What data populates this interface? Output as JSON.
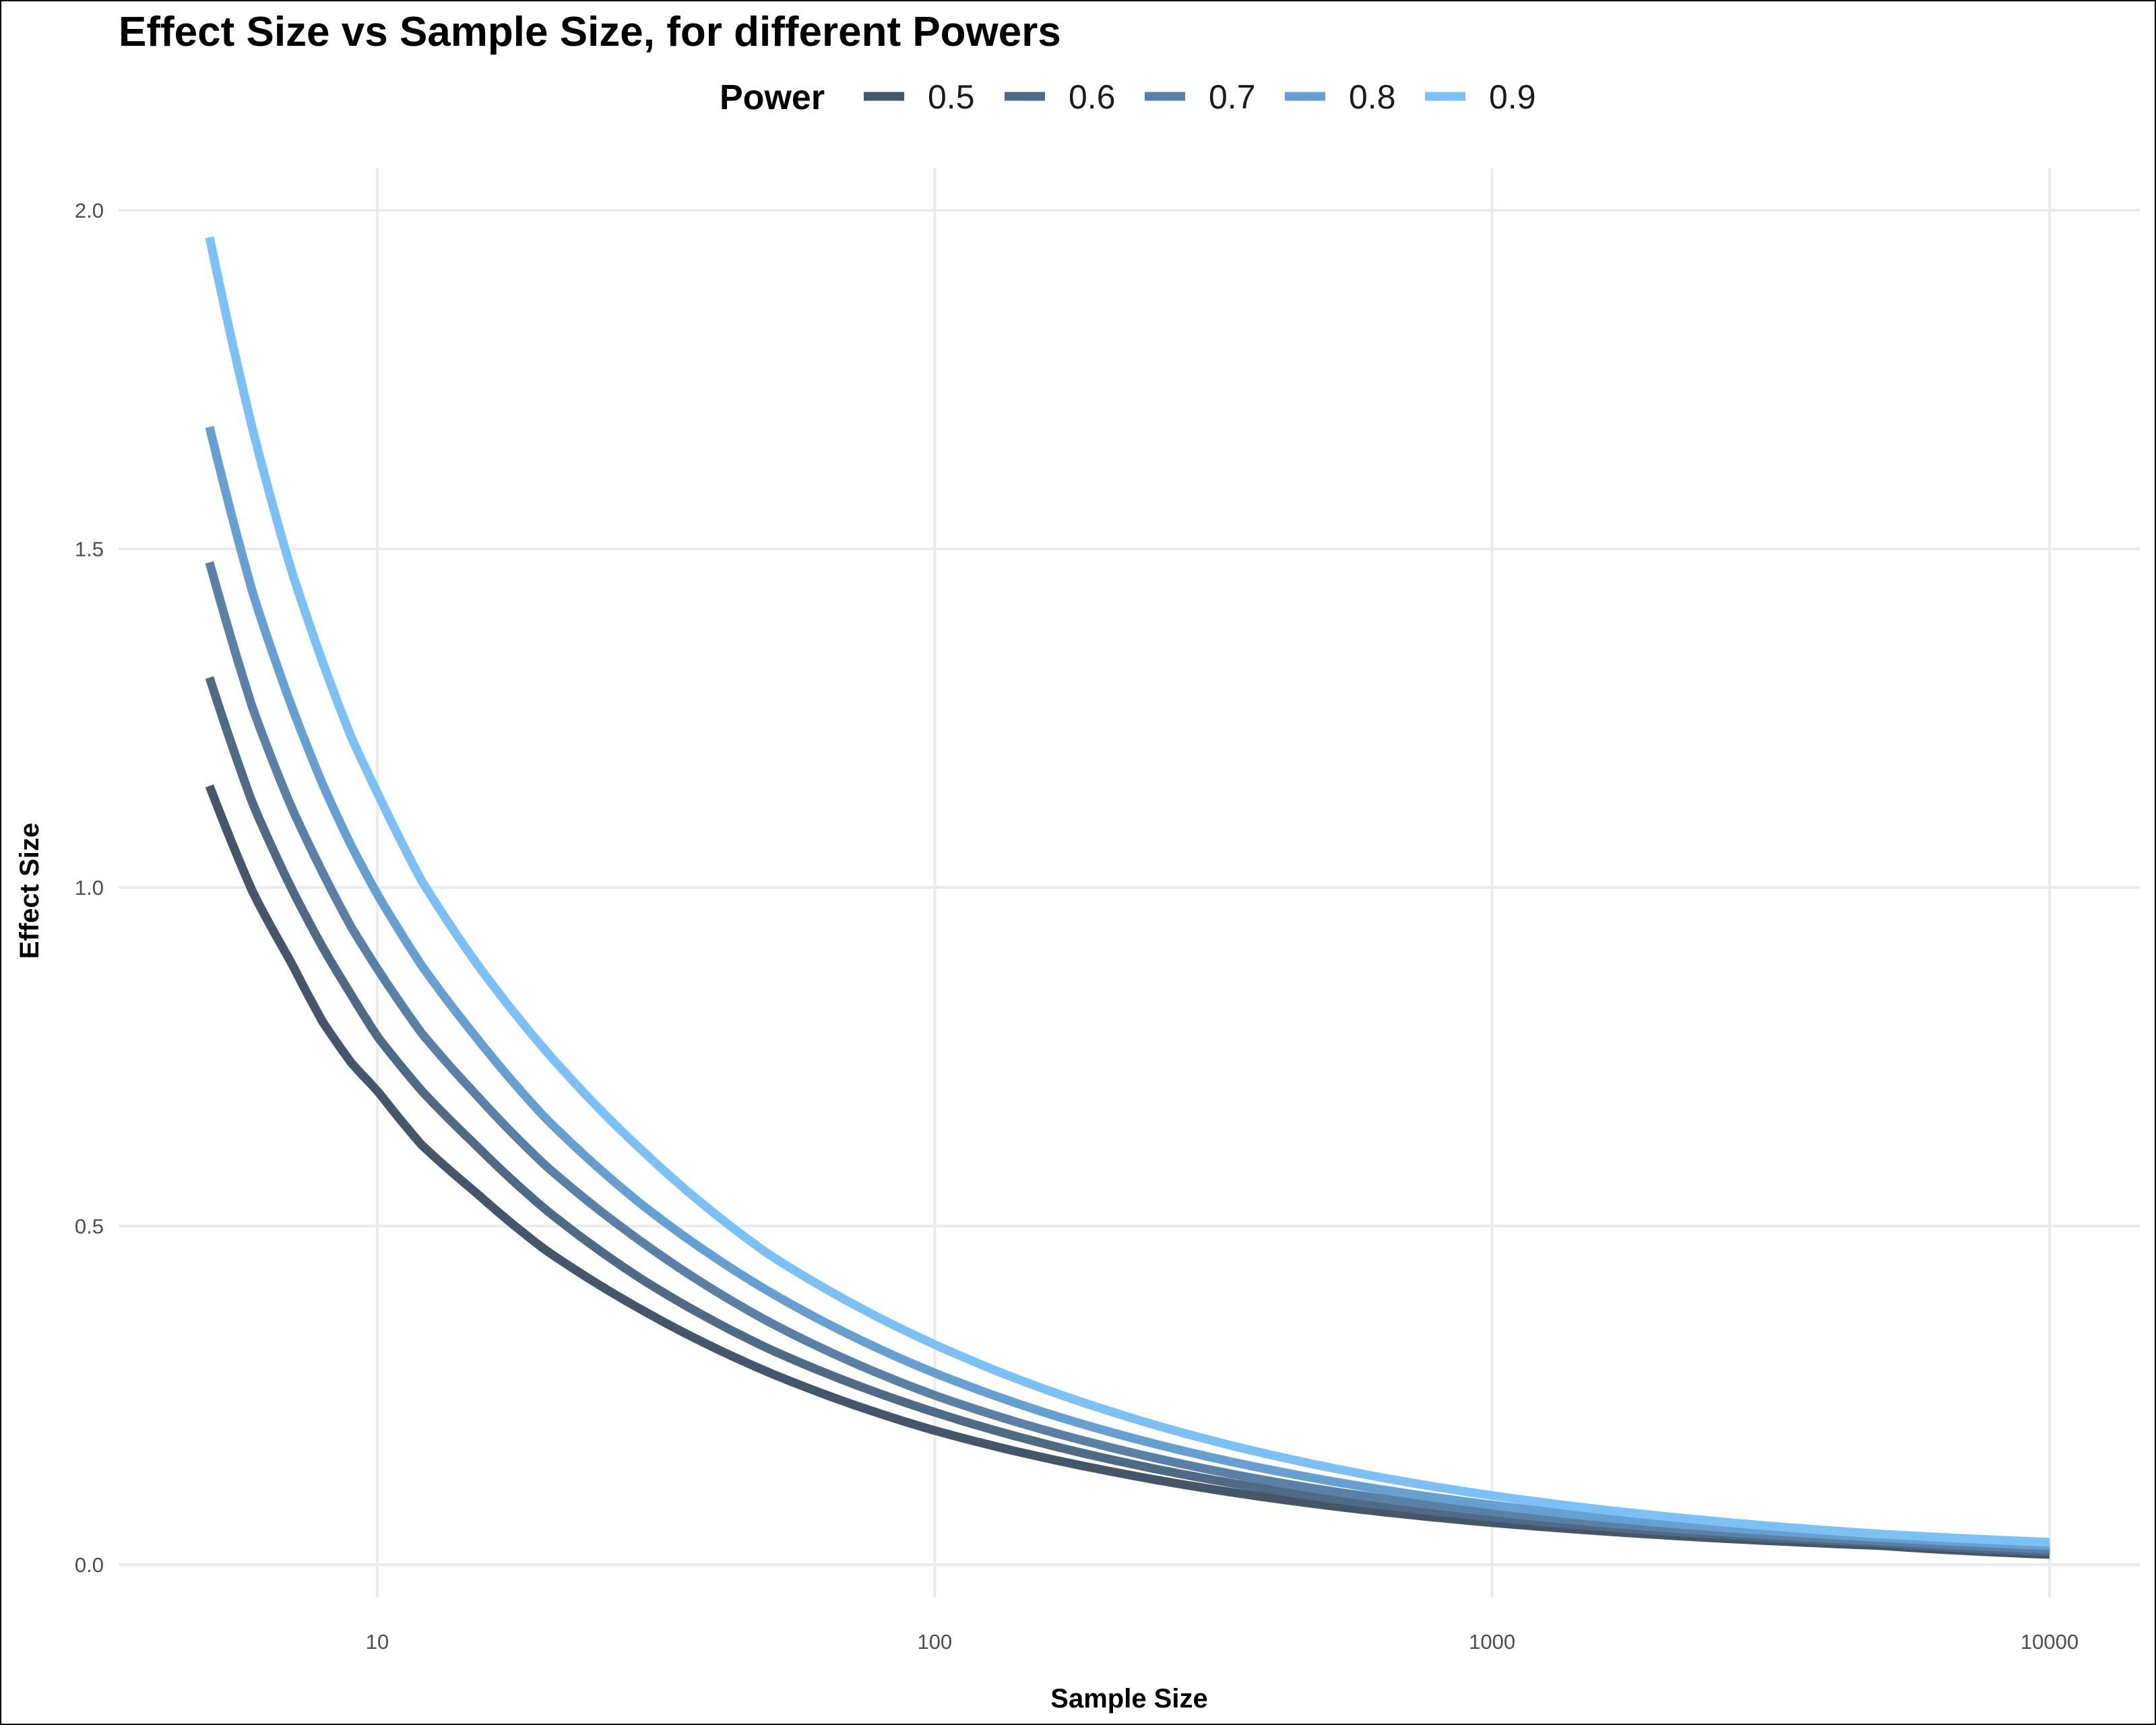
{
  "chart_data": {
    "type": "line",
    "title": "Effect Size vs Sample Size, for different Powers",
    "xlabel": "Sample Size",
    "ylabel": "Effect Size",
    "x_scale": "log10",
    "xlim": [
      5,
      10000
    ],
    "ylim": [
      0,
      2
    ],
    "x_ticks": [
      10,
      100,
      1000,
      10000
    ],
    "x_tick_labels": [
      "10",
      "100",
      "1000",
      "10000"
    ],
    "y_ticks": [
      0,
      0.5,
      1,
      1.5,
      2
    ],
    "y_tick_labels": [
      "0.0",
      "0.5",
      "1.0",
      "1.5",
      "2.0"
    ],
    "grid": true,
    "legend": {
      "title": "Power",
      "position": "top"
    },
    "x": [
      5,
      6,
      7,
      8,
      9,
      10,
      12,
      15,
      20,
      30,
      50,
      100,
      200,
      500,
      1000,
      2000,
      5000,
      10000
    ],
    "series": [
      {
        "name": "0.5",
        "color": "#445667",
        "values": [
          1.15,
          0.99,
          0.89,
          0.8,
          0.74,
          0.7,
          0.62,
          0.55,
          0.465,
          0.375,
          0.285,
          0.198,
          0.14,
          0.088,
          0.062,
          0.044,
          0.028,
          0.015
        ]
      },
      {
        "name": "0.6",
        "color": "#4e6a85",
        "values": [
          1.31,
          1.12,
          1.0,
          0.91,
          0.84,
          0.78,
          0.7,
          0.62,
          0.525,
          0.42,
          0.32,
          0.225,
          0.158,
          0.099,
          0.07,
          0.05,
          0.032,
          0.019
        ]
      },
      {
        "name": "0.7",
        "color": "#5a80a5",
        "values": [
          1.48,
          1.26,
          1.12,
          1.02,
          0.94,
          0.88,
          0.785,
          0.695,
          0.59,
          0.475,
          0.36,
          0.25,
          0.176,
          0.11,
          0.078,
          0.055,
          0.035,
          0.023
        ]
      },
      {
        "name": "0.8",
        "color": "#66a0d0",
        "values": [
          1.68,
          1.43,
          1.27,
          1.15,
          1.06,
          0.99,
          0.885,
          0.78,
          0.66,
          0.53,
          0.405,
          0.283,
          0.199,
          0.125,
          0.088,
          0.062,
          0.04,
          0.028
        ]
      },
      {
        "name": "0.9",
        "color": "#7cc1f5",
        "values": [
          1.96,
          1.67,
          1.47,
          1.33,
          1.22,
          1.14,
          1.01,
          0.89,
          0.76,
          0.61,
          0.46,
          0.325,
          0.23,
          0.145,
          0.102,
          0.072,
          0.045,
          0.033
        ]
      }
    ]
  }
}
